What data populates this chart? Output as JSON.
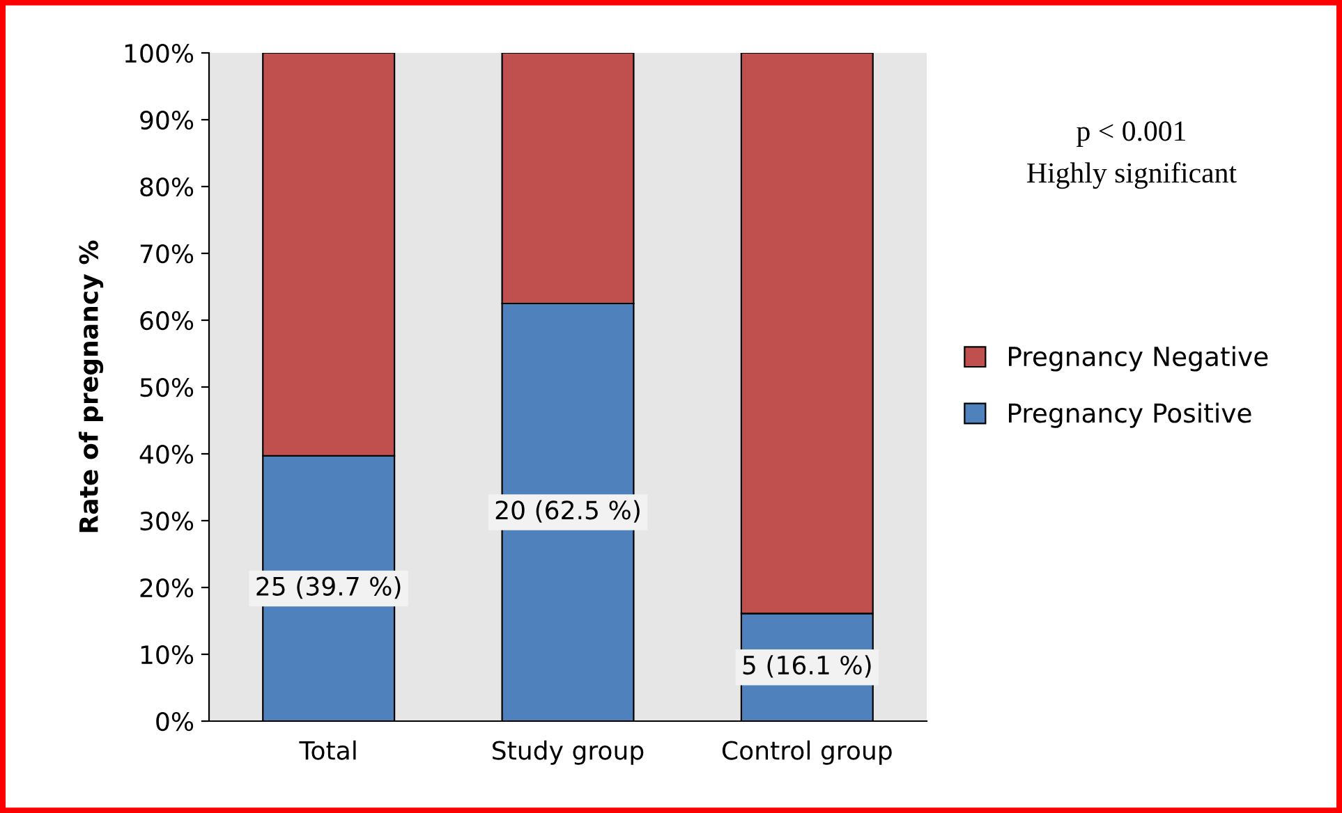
{
  "chart_data": {
    "type": "bar",
    "stacked": true,
    "ylabel": "Rate of pregnancy %",
    "categories": [
      "Total",
      "Study group",
      "Control group"
    ],
    "series": [
      {
        "name": "Pregnancy Positive",
        "color": "#4f81bd",
        "values": [
          39.7,
          62.5,
          16.1
        ],
        "value_labels": [
          "25 (39.7 %)",
          "20 (62.5 %)",
          "5 (16.1 %)"
        ]
      },
      {
        "name": "Pregnancy Negative",
        "color": "#c0504d",
        "values": [
          60.3,
          37.5,
          83.9
        ]
      }
    ],
    "ylim": [
      0,
      100
    ],
    "yticks": [
      {
        "value": 0,
        "label": "0%"
      },
      {
        "value": 10,
        "label": "10%"
      },
      {
        "value": 20,
        "label": "20%"
      },
      {
        "value": 30,
        "label": "30%"
      },
      {
        "value": 40,
        "label": "40%"
      },
      {
        "value": 50,
        "label": "50%"
      },
      {
        "value": 60,
        "label": "60%"
      },
      {
        "value": 70,
        "label": "70%"
      },
      {
        "value": 80,
        "label": "80%"
      },
      {
        "value": 90,
        "label": "90%"
      },
      {
        "value": 100,
        "label": "100%"
      }
    ],
    "grid": false,
    "legend": "right",
    "annotations": [
      "p < 0.001",
      "Highly significant"
    ]
  }
}
